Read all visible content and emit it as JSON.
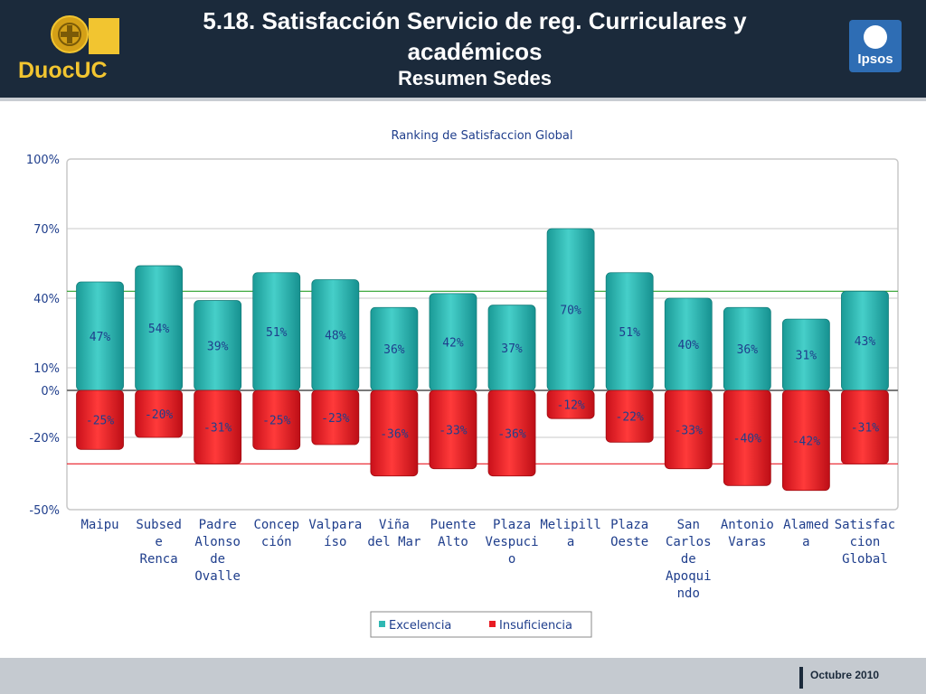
{
  "header": {
    "title_line1": "5.18. Satisfacción Servicio de reg. Curriculares y",
    "title_line2": "académicos",
    "subtitle": "Resumen Sedes",
    "logo_left_text": "DuocUC",
    "logo_right_text": "Ipsos"
  },
  "footer": {
    "date": "Octubre 2010"
  },
  "colors": {
    "excelencia": "#2fb8b3",
    "insuficiencia": "#e81c24",
    "header_bg": "#1b2a3b"
  },
  "chart_data": {
    "type": "bar",
    "title": "Ranking de Satisfaccion Global",
    "ylim": [
      -50,
      100
    ],
    "yticks": [
      100,
      70,
      40,
      10,
      0,
      -20,
      -50
    ],
    "ytick_labels": [
      "100%",
      "70%",
      "40%",
      "10%",
      "0%",
      "-20%",
      "-50%"
    ],
    "categories": [
      [
        "Maipu"
      ],
      [
        "Subsed",
        "e",
        "Renca"
      ],
      [
        "Padre",
        "Alonso",
        "de",
        "Ovalle"
      ],
      [
        "Concep",
        "ción"
      ],
      [
        "Valpara",
        "íso"
      ],
      [
        "Viña",
        "del Mar"
      ],
      [
        "Puente",
        "Alto"
      ],
      [
        "Plaza",
        "Vespuci",
        "o"
      ],
      [
        "Melipill",
        "a"
      ],
      [
        "Plaza",
        "Oeste"
      ],
      [
        "San",
        "Carlos",
        "de",
        "Apoqui",
        "ndo"
      ],
      [
        "Antonio",
        "Varas"
      ],
      [
        "Alamed",
        "a"
      ],
      [
        "Satisfac",
        "cion",
        "Global"
      ]
    ],
    "series": [
      {
        "name": "Excelencia",
        "values": [
          47,
          54,
          39,
          51,
          48,
          36,
          42,
          37,
          70,
          51,
          40,
          36,
          31,
          43
        ],
        "labels": [
          "47%",
          "54%",
          "39%",
          "51%",
          "48%",
          "36%",
          "42%",
          "37%",
          "70%",
          "51%",
          "40%",
          "36%",
          "31%",
          "43%"
        ]
      },
      {
        "name": "Insuficiencia",
        "values": [
          -25,
          -20,
          -31,
          -25,
          -23,
          -36,
          -33,
          -36,
          -12,
          -22,
          -33,
          -40,
          -42,
          -31
        ],
        "labels": [
          "-25%",
          "-20%",
          "-31%",
          "-25%",
          "-23%",
          "-36%",
          "-33%",
          "-36%",
          "-12%",
          "-22%",
          "-33%",
          "-40%",
          "-42%",
          "-31%"
        ]
      }
    ],
    "reference_lines": [
      43,
      -31
    ],
    "legend": "bottom-center",
    "grid": true
  }
}
